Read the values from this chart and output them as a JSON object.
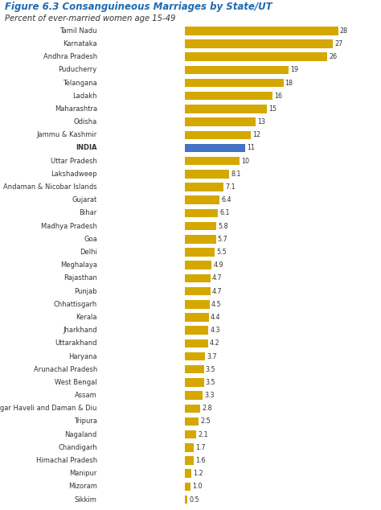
{
  "title": "Figure 6.3 Consanguineous Marriages by State/UT",
  "subtitle": "Percent of ever-married women age 15-49",
  "categories": [
    "Tamil Nadu",
    "Karnataka",
    "Andhra Pradesh",
    "Puducherry",
    "Telangana",
    "Ladakh",
    "Maharashtra",
    "Odisha",
    "Jammu & Kashmir",
    "INDIA",
    "Uttar Pradesh",
    "Lakshadweep",
    "Andaman & Nicobar Islands",
    "Gujarat",
    "Bihar",
    "Madhya Pradesh",
    "Goa",
    "Delhi",
    "Meghalaya",
    "Rajasthan",
    "Punjab",
    "Chhattisgarh",
    "Kerala",
    "Jharkhand",
    "Uttarakhand",
    "Haryana",
    "Arunachal Pradesh",
    "West Bengal",
    "Assam",
    "Dadra & Nagar Haveli and Daman & Diu",
    "Tripura",
    "Nagaland",
    "Chandigarh",
    "Himachal Pradesh",
    "Manipur",
    "Mizoram",
    "Sikkim"
  ],
  "values": [
    28,
    27,
    26,
    19,
    18,
    16,
    15,
    13,
    12,
    11,
    10,
    8.1,
    7.1,
    6.4,
    6.1,
    5.8,
    5.7,
    5.5,
    4.9,
    4.7,
    4.7,
    4.5,
    4.4,
    4.3,
    4.2,
    3.7,
    3.5,
    3.5,
    3.3,
    2.8,
    2.5,
    2.1,
    1.7,
    1.6,
    1.2,
    1.0,
    0.5
  ],
  "bar_colors": [
    "#D4A800",
    "#D4A800",
    "#D4A800",
    "#D4A800",
    "#D4A800",
    "#D4A800",
    "#D4A800",
    "#D4A800",
    "#D4A800",
    "#4472C4",
    "#D4A800",
    "#D4A800",
    "#D4A800",
    "#D4A800",
    "#D4A800",
    "#D4A800",
    "#D4A800",
    "#D4A800",
    "#D4A800",
    "#D4A800",
    "#D4A800",
    "#D4A800",
    "#D4A800",
    "#D4A800",
    "#D4A800",
    "#D4A800",
    "#D4A800",
    "#D4A800",
    "#D4A800",
    "#D4A800",
    "#D4A800",
    "#D4A800",
    "#D4A800",
    "#D4A800",
    "#D4A800",
    "#D4A800",
    "#D4A800"
  ],
  "title_color": "#1F6BB0",
  "subtitle_color": "#333333",
  "label_color": "#333333",
  "value_color": "#333333",
  "background_color": "#FFFFFF",
  "xlim": [
    0,
    32
  ],
  "bar_height": 0.65,
  "figsize": [
    4.74,
    6.34
  ],
  "dpi": 100
}
